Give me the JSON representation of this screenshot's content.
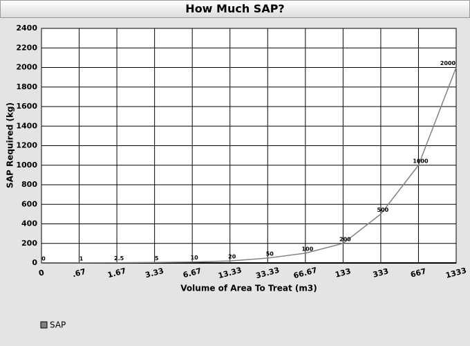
{
  "chart_data": {
    "type": "line",
    "title": "How Much SAP?",
    "x_label": "Volume of Area To Treat (m3)",
    "y_label": "SAP Required (kg)",
    "categories": [
      "0",
      ".67",
      "1.67",
      "3.33",
      "6.67",
      "13.33",
      "33.33",
      "66.67",
      "133",
      "333",
      "667",
      "1333"
    ],
    "series": [
      {
        "name": "SAP",
        "color": "#808080",
        "values": [
          0,
          1,
          2.5,
          5,
          10,
          20,
          50,
          100,
          200,
          500,
          1000,
          2000
        ]
      }
    ],
    "ylim": [
      0,
      2400
    ],
    "yticks": [
      0,
      200,
      400,
      600,
      800,
      1000,
      1200,
      1400,
      1600,
      1800,
      2000,
      2200,
      2400
    ],
    "grid": true,
    "legend": "bottom-left"
  }
}
